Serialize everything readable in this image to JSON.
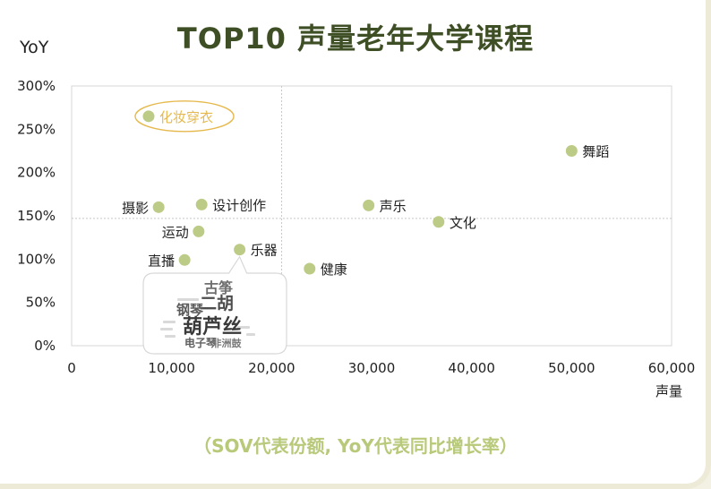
{
  "title": "TOP10 声量老年大学课程",
  "footnote": "（SOV代表份额, YoY代表同比增长率）",
  "colors": {
    "point": "#bccb86",
    "highlight": "#e6b94f",
    "title": "#3f4f25",
    "footnote": "#b8c97a"
  },
  "chart_data": {
    "type": "scatter",
    "xlabel": "声量",
    "ylabel": "YoY",
    "xlim": [
      0,
      60000
    ],
    "ylim": [
      0,
      300
    ],
    "xticks": [
      "0",
      "10,000",
      "20,000",
      "30,000",
      "40,000",
      "50,000",
      "60,000"
    ],
    "yticks": [
      "0%",
      "50%",
      "100%",
      "150%",
      "200%",
      "250%",
      "300%"
    ],
    "reference_lines": {
      "x": 21000,
      "y": 147
    },
    "points": [
      {
        "label": "化妆穿衣",
        "x": 7700,
        "y": 265,
        "highlight": true
      },
      {
        "label": "舞蹈",
        "x": 50000,
        "y": 225
      },
      {
        "label": "摄影",
        "x": 8700,
        "y": 160
      },
      {
        "label": "设计创作",
        "x": 13000,
        "y": 163
      },
      {
        "label": "声乐",
        "x": 29700,
        "y": 162
      },
      {
        "label": "文化",
        "x": 36700,
        "y": 143
      },
      {
        "label": "运动",
        "x": 12700,
        "y": 132
      },
      {
        "label": "乐器",
        "x": 16800,
        "y": 111
      },
      {
        "label": "直播",
        "x": 11300,
        "y": 99
      },
      {
        "label": "健康",
        "x": 23800,
        "y": 89
      }
    ]
  },
  "wordcloud": [
    {
      "text": "古筝",
      "size": "medium"
    },
    {
      "text": "二胡",
      "size": "large"
    },
    {
      "text": "钢琴",
      "size": "medium"
    },
    {
      "text": "葫芦丝",
      "size": "xlarge"
    },
    {
      "text": "电子琴",
      "size": "small"
    },
    {
      "text": "非洲鼓",
      "size": "small"
    }
  ]
}
